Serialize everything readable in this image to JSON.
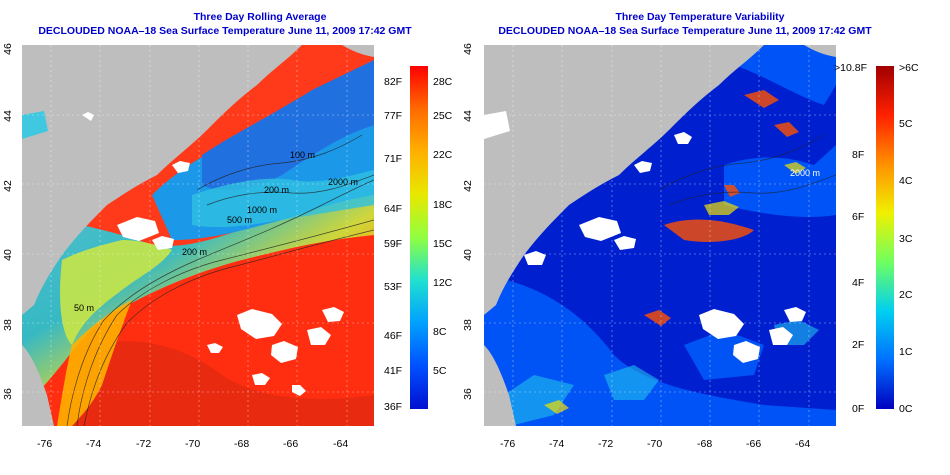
{
  "left_panel": {
    "title": "Three Day Rolling Average",
    "subtitle": "DECLOUDED NOAA–18 Sea Surface Temperature June 11, 2009 17:42 GMT",
    "contour_labels": [
      "100 m",
      "200 m",
      "500 m",
      "1000 m",
      "2000 m",
      "200 m",
      "50 m"
    ],
    "colorbar": {
      "left_labels": [
        "82F",
        "77F",
        "71F",
        "64F",
        "59F",
        "53F",
        "46F",
        "41F",
        "36F"
      ],
      "right_labels": [
        "28C",
        "25C",
        "22C",
        "18C",
        "15C",
        "12C",
        "8C",
        "5C"
      ],
      "colors": [
        "#ff0000",
        "#ff6a00",
        "#ffb000",
        "#e8e800",
        "#90ff40",
        "#20e0d0",
        "#00a0ff",
        "#0050ff",
        "#0010d0"
      ]
    }
  },
  "right_panel": {
    "title": "Three Day Temperature Variability",
    "subtitle": "DECLOUDED NOAA–18 Sea Surface Temperature June 11, 2009 17:42 GMT",
    "contour_labels": [
      "2000 m"
    ],
    "colorbar": {
      "left_labels": [
        ">10.8F",
        "8F",
        "6F",
        "4F",
        "2F",
        "0F"
      ],
      "right_labels": [
        ">6C",
        "5C",
        "4C",
        "3C",
        "2C",
        "1C",
        "0C"
      ],
      "colors": [
        "#a00000",
        "#ff2000",
        "#ff9000",
        "#f0f000",
        "#70ff60",
        "#00d0f0",
        "#0070ff",
        "#0000c0"
      ]
    }
  },
  "axes": {
    "x_ticks": [
      "-76",
      "-74",
      "-72",
      "-70",
      "-68",
      "-66",
      "-64"
    ],
    "y_ticks": [
      "46",
      "44",
      "42",
      "40",
      "38",
      "36"
    ]
  },
  "colors": {
    "land": "#bebebe",
    "cloud": "#ffffff",
    "title": "#0000cc"
  }
}
